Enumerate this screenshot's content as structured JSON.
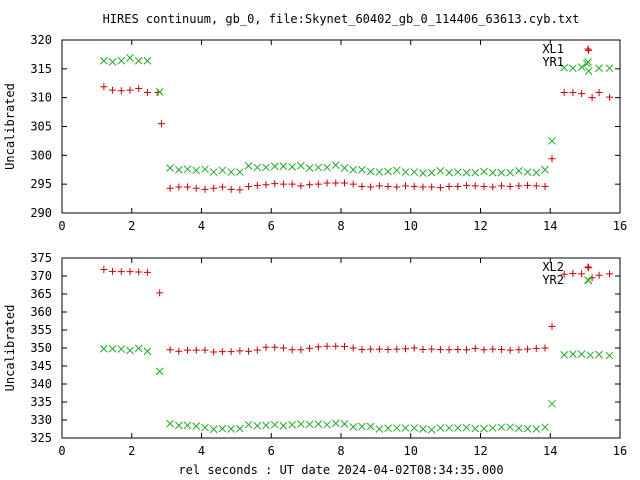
{
  "title": "HIRES continuum, gb_0, file:Skynet_60402_gb_0_114406_63613.cyb.txt",
  "xlabel": "rel seconds : UT date 2024-04-02T08:34:35.000",
  "colors": {
    "series_plus": "#cc0000",
    "series_cross": "#22aa22",
    "frame": "#000000",
    "grid": "#888888"
  },
  "chart_data": [
    {
      "type": "scatter",
      "ylabel": "Uncalibrated",
      "xlim": [
        0,
        16
      ],
      "ylim": [
        290,
        320
      ],
      "xticks": [
        0,
        2,
        4,
        6,
        8,
        10,
        12,
        14,
        16
      ],
      "yticks": [
        290,
        295,
        300,
        305,
        310,
        315,
        320
      ],
      "legend": "top-right",
      "series": [
        {
          "name": "XL1",
          "marker": "plus",
          "points": [
            [
              1.2,
              311.9
            ],
            [
              1.45,
              311.3
            ],
            [
              1.7,
              311.2
            ],
            [
              1.95,
              311.3
            ],
            [
              2.2,
              311.6
            ],
            [
              2.45,
              310.9
            ],
            [
              2.75,
              310.9
            ],
            [
              2.85,
              305.5
            ],
            [
              3.1,
              294.3
            ],
            [
              3.35,
              294.5
            ],
            [
              3.6,
              294.5
            ],
            [
              3.85,
              294.3
            ],
            [
              4.1,
              294.1
            ],
            [
              4.35,
              294.3
            ],
            [
              4.6,
              294.5
            ],
            [
              4.85,
              294.1
            ],
            [
              5.1,
              294.0
            ],
            [
              5.35,
              294.6
            ],
            [
              5.6,
              294.8
            ],
            [
              5.85,
              294.9
            ],
            [
              6.1,
              295.1
            ],
            [
              6.35,
              295.0
            ],
            [
              6.6,
              295.0
            ],
            [
              6.85,
              294.7
            ],
            [
              7.1,
              294.9
            ],
            [
              7.35,
              295.0
            ],
            [
              7.6,
              295.2
            ],
            [
              7.85,
              295.2
            ],
            [
              8.1,
              295.2
            ],
            [
              8.35,
              295.0
            ],
            [
              8.6,
              294.6
            ],
            [
              8.85,
              294.5
            ],
            [
              9.1,
              294.7
            ],
            [
              9.35,
              294.6
            ],
            [
              9.6,
              294.5
            ],
            [
              9.85,
              294.7
            ],
            [
              10.1,
              294.6
            ],
            [
              10.35,
              294.5
            ],
            [
              10.6,
              294.5
            ],
            [
              10.85,
              294.4
            ],
            [
              11.1,
              294.6
            ],
            [
              11.35,
              294.6
            ],
            [
              11.6,
              294.8
            ],
            [
              11.85,
              294.7
            ],
            [
              12.1,
              294.6
            ],
            [
              12.35,
              294.5
            ],
            [
              12.6,
              294.7
            ],
            [
              12.85,
              294.6
            ],
            [
              13.1,
              294.7
            ],
            [
              13.35,
              294.8
            ],
            [
              13.6,
              294.7
            ],
            [
              13.85,
              294.6
            ],
            [
              14.05,
              299.4
            ],
            [
              14.4,
              310.9
            ],
            [
              14.65,
              310.9
            ],
            [
              14.9,
              310.7
            ],
            [
              15.1,
              318.2
            ],
            [
              15.4,
              310.9
            ],
            [
              15.7,
              310.1
            ],
            [
              15.2,
              310.0
            ]
          ]
        },
        {
          "name": "YR1",
          "marker": "cross",
          "points": [
            [
              1.2,
              316.4
            ],
            [
              1.45,
              316.2
            ],
            [
              1.7,
              316.4
            ],
            [
              1.95,
              316.9
            ],
            [
              2.2,
              316.4
            ],
            [
              2.45,
              316.4
            ],
            [
              2.8,
              311.0
            ],
            [
              3.1,
              297.8
            ],
            [
              3.35,
              297.5
            ],
            [
              3.6,
              297.6
            ],
            [
              3.85,
              297.4
            ],
            [
              4.1,
              297.6
            ],
            [
              4.35,
              297.1
            ],
            [
              4.6,
              297.4
            ],
            [
              4.85,
              297.1
            ],
            [
              5.1,
              297.1
            ],
            [
              5.35,
              298.2
            ],
            [
              5.6,
              297.9
            ],
            [
              5.85,
              297.9
            ],
            [
              6.1,
              298.1
            ],
            [
              6.35,
              298.1
            ],
            [
              6.6,
              298.0
            ],
            [
              6.85,
              298.2
            ],
            [
              7.1,
              297.8
            ],
            [
              7.35,
              297.9
            ],
            [
              7.6,
              297.9
            ],
            [
              7.85,
              298.3
            ],
            [
              8.1,
              297.8
            ],
            [
              8.35,
              297.5
            ],
            [
              8.6,
              297.5
            ],
            [
              8.85,
              297.2
            ],
            [
              9.1,
              297.1
            ],
            [
              9.35,
              297.2
            ],
            [
              9.6,
              297.4
            ],
            [
              9.85,
              297.1
            ],
            [
              10.1,
              297.1
            ],
            [
              10.35,
              296.9
            ],
            [
              10.6,
              297.0
            ],
            [
              10.85,
              297.3
            ],
            [
              11.1,
              297.0
            ],
            [
              11.35,
              297.1
            ],
            [
              11.6,
              297.0
            ],
            [
              11.85,
              297.0
            ],
            [
              12.1,
              297.2
            ],
            [
              12.35,
              297.0
            ],
            [
              12.6,
              297.0
            ],
            [
              12.85,
              297.0
            ],
            [
              13.1,
              297.3
            ],
            [
              13.35,
              297.1
            ],
            [
              13.6,
              297.0
            ],
            [
              13.85,
              297.5
            ],
            [
              14.05,
              302.5
            ],
            [
              14.4,
              315.2
            ],
            [
              14.65,
              315.1
            ],
            [
              14.9,
              315.3
            ],
            [
              15.1,
              314.6
            ],
            [
              15.4,
              315.1
            ],
            [
              15.7,
              315.1
            ],
            [
              15.05,
              315.9
            ]
          ]
        }
      ]
    },
    {
      "type": "scatter",
      "ylabel": "Uncalibrated",
      "xlim": [
        0,
        16
      ],
      "ylim": [
        325,
        375
      ],
      "xticks": [
        0,
        2,
        4,
        6,
        8,
        10,
        12,
        14,
        16
      ],
      "yticks": [
        325,
        330,
        335,
        340,
        345,
        350,
        355,
        360,
        365,
        370,
        375
      ],
      "legend": "top-right",
      "series": [
        {
          "name": "XL2",
          "marker": "plus",
          "points": [
            [
              1.2,
              371.8
            ],
            [
              1.45,
              371.3
            ],
            [
              1.7,
              371.2
            ],
            [
              1.95,
              371.2
            ],
            [
              2.2,
              371.1
            ],
            [
              2.45,
              371.0
            ],
            [
              2.8,
              365.3
            ],
            [
              3.1,
              349.5
            ],
            [
              3.35,
              349.1
            ],
            [
              3.6,
              349.4
            ],
            [
              3.85,
              349.4
            ],
            [
              4.1,
              349.4
            ],
            [
              4.35,
              348.9
            ],
            [
              4.6,
              349.0
            ],
            [
              4.85,
              349.0
            ],
            [
              5.1,
              349.2
            ],
            [
              5.35,
              349.1
            ],
            [
              5.6,
              349.4
            ],
            [
              5.85,
              350.2
            ],
            [
              6.1,
              350.2
            ],
            [
              6.35,
              350.0
            ],
            [
              6.6,
              349.5
            ],
            [
              6.85,
              349.5
            ],
            [
              7.1,
              349.9
            ],
            [
              7.35,
              350.3
            ],
            [
              7.6,
              350.5
            ],
            [
              7.85,
              350.5
            ],
            [
              8.1,
              350.4
            ],
            [
              8.35,
              350.0
            ],
            [
              8.6,
              349.6
            ],
            [
              8.85,
              349.7
            ],
            [
              9.1,
              349.7
            ],
            [
              9.35,
              349.6
            ],
            [
              9.6,
              349.7
            ],
            [
              9.85,
              349.8
            ],
            [
              10.1,
              350.0
            ],
            [
              10.35,
              349.6
            ],
            [
              10.6,
              349.7
            ],
            [
              10.85,
              349.6
            ],
            [
              11.1,
              349.5
            ],
            [
              11.35,
              349.6
            ],
            [
              11.6,
              349.5
            ],
            [
              11.85,
              349.9
            ],
            [
              12.1,
              349.5
            ],
            [
              12.35,
              349.7
            ],
            [
              12.6,
              349.6
            ],
            [
              12.85,
              349.4
            ],
            [
              13.1,
              349.5
            ],
            [
              13.35,
              349.7
            ],
            [
              13.6,
              349.9
            ],
            [
              13.85,
              350.0
            ],
            [
              14.05,
              356.0
            ],
            [
              14.4,
              370.5
            ],
            [
              14.65,
              370.7
            ],
            [
              14.9,
              370.6
            ],
            [
              15.1,
              372.3
            ],
            [
              15.4,
              370.2
            ],
            [
              15.7,
              370.6
            ],
            [
              15.2,
              369.5
            ]
          ]
        },
        {
          "name": "YR2",
          "marker": "cross",
          "points": [
            [
              1.2,
              349.8
            ],
            [
              1.45,
              349.8
            ],
            [
              1.7,
              349.7
            ],
            [
              1.95,
              349.3
            ],
            [
              2.2,
              349.9
            ],
            [
              2.45,
              349.1
            ],
            [
              2.8,
              343.5
            ],
            [
              3.1,
              329.0
            ],
            [
              3.35,
              328.5
            ],
            [
              3.6,
              328.5
            ],
            [
              3.85,
              328.3
            ],
            [
              4.1,
              327.9
            ],
            [
              4.35,
              327.4
            ],
            [
              4.6,
              327.6
            ],
            [
              4.85,
              327.5
            ],
            [
              5.1,
              327.6
            ],
            [
              5.35,
              328.7
            ],
            [
              5.6,
              328.4
            ],
            [
              5.85,
              328.5
            ],
            [
              6.1,
              328.7
            ],
            [
              6.35,
              328.4
            ],
            [
              6.6,
              328.7
            ],
            [
              6.85,
              328.9
            ],
            [
              7.1,
              328.8
            ],
            [
              7.35,
              328.9
            ],
            [
              7.6,
              328.7
            ],
            [
              7.85,
              329.1
            ],
            [
              8.1,
              328.9
            ],
            [
              8.35,
              328.1
            ],
            [
              8.6,
              328.2
            ],
            [
              8.85,
              328.2
            ],
            [
              9.1,
              327.5
            ],
            [
              9.35,
              327.7
            ],
            [
              9.6,
              327.8
            ],
            [
              9.85,
              327.8
            ],
            [
              10.1,
              327.8
            ],
            [
              10.35,
              327.5
            ],
            [
              10.6,
              327.3
            ],
            [
              10.85,
              327.8
            ],
            [
              11.1,
              327.8
            ],
            [
              11.35,
              327.8
            ],
            [
              11.6,
              327.9
            ],
            [
              11.85,
              327.6
            ],
            [
              12.1,
              327.6
            ],
            [
              12.35,
              327.8
            ],
            [
              12.6,
              328.0
            ],
            [
              12.85,
              328.0
            ],
            [
              13.1,
              327.7
            ],
            [
              13.35,
              327.6
            ],
            [
              13.6,
              327.5
            ],
            [
              13.85,
              328.0
            ],
            [
              14.05,
              334.5
            ],
            [
              14.4,
              348.1
            ],
            [
              14.65,
              348.3
            ],
            [
              14.9,
              348.3
            ],
            [
              15.1,
              368.8
            ],
            [
              15.4,
              348.2
            ],
            [
              15.7,
              347.9
            ],
            [
              15.15,
              348.0
            ]
          ]
        }
      ]
    }
  ]
}
